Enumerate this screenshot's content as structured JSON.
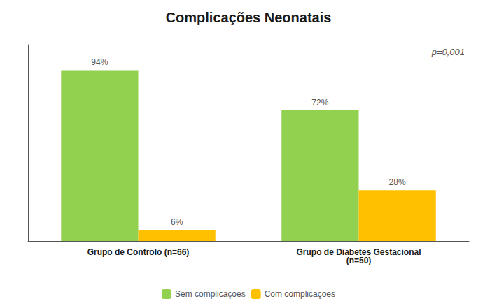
{
  "chart_data": {
    "type": "bar",
    "title": "Complicações Neonatais",
    "annotations": [
      "p=0,001"
    ],
    "categories": [
      "Grupo de Controlo (n=66)",
      "Grupo de Diabetes Gestacional\n(n=50)"
    ],
    "series": [
      {
        "name": "Sem complicações",
        "color": "#92D050",
        "values": [
          94,
          72
        ],
        "value_labels": [
          "94%",
          "72%"
        ]
      },
      {
        "name": "Com complicações",
        "color": "#FFC000",
        "values": [
          6,
          28
        ],
        "value_labels": [
          "6%",
          "28%"
        ]
      }
    ],
    "ylim": [
      0,
      108
    ],
    "grid": false,
    "legend": "bottom",
    "data_labels": true,
    "tick_labels": "x"
  }
}
